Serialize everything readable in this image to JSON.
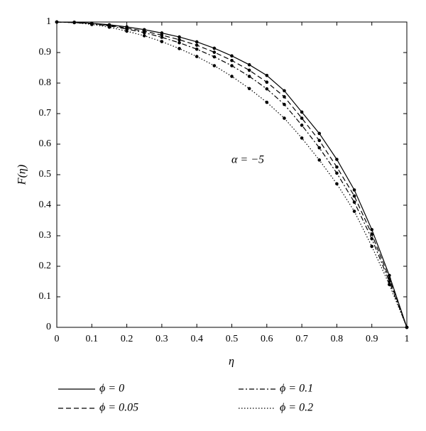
{
  "chart_data": {
    "type": "line",
    "x_label": "η",
    "y_label": "F(η)",
    "annotation": "α = −5",
    "x": [
      0,
      0.05,
      0.1,
      0.15,
      0.2,
      0.25,
      0.3,
      0.35,
      0.4,
      0.45,
      0.5,
      0.55,
      0.6,
      0.65,
      0.7,
      0.75,
      0.8,
      0.85,
      0.9,
      0.95,
      1
    ],
    "series": [
      {
        "name": "ϕ = 0",
        "color": "#000000",
        "dash": "solid",
        "values": [
          1,
          0.999,
          0.996,
          0.991,
          0.984,
          0.975,
          0.964,
          0.951,
          0.935,
          0.914,
          0.889,
          0.86,
          0.825,
          0.775,
          0.705,
          0.635,
          0.55,
          0.45,
          0.32,
          0.17,
          0
        ]
      },
      {
        "name": "ϕ = 0.05",
        "color": "#000000",
        "dash": "dashed",
        "values": [
          1,
          0.999,
          0.995,
          0.989,
          0.98,
          0.97,
          0.957,
          0.942,
          0.924,
          0.901,
          0.874,
          0.842,
          0.803,
          0.755,
          0.685,
          0.612,
          0.525,
          0.43,
          0.305,
          0.16,
          0
        ]
      },
      {
        "name": "ϕ = 0.1",
        "color": "#000000",
        "dash": "dashdot",
        "values": [
          1,
          0.998,
          0.994,
          0.987,
          0.977,
          0.965,
          0.95,
          0.932,
          0.911,
          0.886,
          0.857,
          0.822,
          0.781,
          0.73,
          0.662,
          0.588,
          0.505,
          0.41,
          0.29,
          0.15,
          0
        ]
      },
      {
        "name": "ϕ = 0.2",
        "color": "#000000",
        "dash": "dotted",
        "values": [
          1,
          0.998,
          0.992,
          0.983,
          0.97,
          0.955,
          0.936,
          0.913,
          0.887,
          0.857,
          0.822,
          0.782,
          0.737,
          0.685,
          0.62,
          0.548,
          0.47,
          0.38,
          0.265,
          0.14,
          0
        ]
      }
    ],
    "markers": true,
    "xlim": [
      0,
      1
    ],
    "ylim": [
      0,
      1
    ],
    "xticks": [
      0,
      0.1,
      0.2,
      0.3,
      0.4,
      0.5,
      0.6,
      0.7,
      0.8,
      0.9,
      1
    ],
    "yticks": [
      0,
      0.1,
      0.2,
      0.3,
      0.4,
      0.5,
      0.6,
      0.7,
      0.8,
      0.9,
      1
    ],
    "legend": "bottom"
  }
}
